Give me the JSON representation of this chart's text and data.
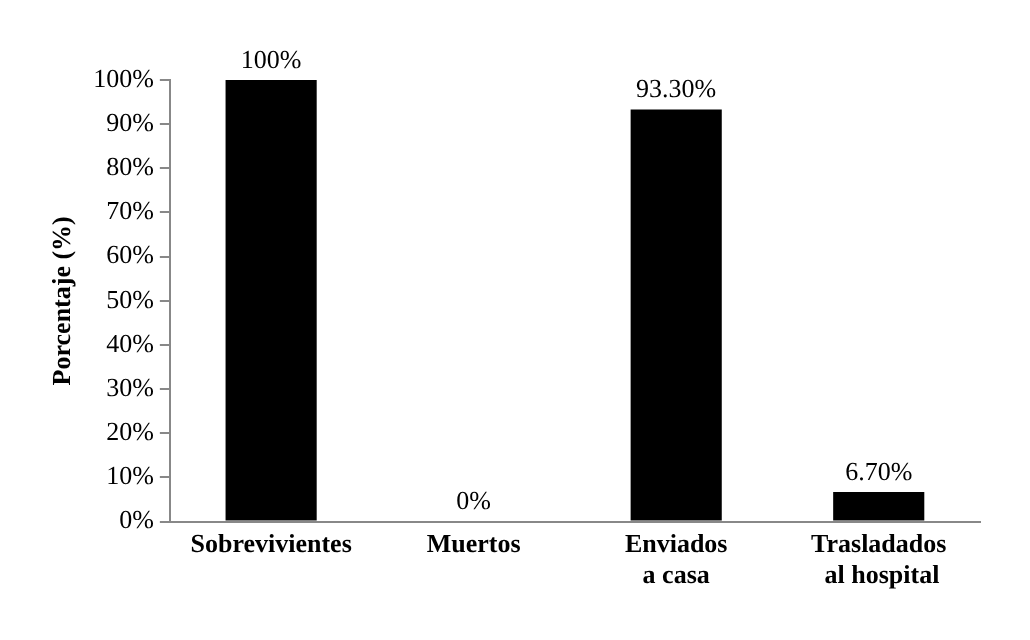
{
  "chart_data": {
    "type": "bar",
    "ylabel": "Porcentaje (%)",
    "categories": [
      "Sobrevivientes",
      "Muertos",
      "Enviados\na casa",
      "Trasladados\n al hospital"
    ],
    "values": [
      100,
      0,
      93.3,
      6.7
    ],
    "color": "#000000",
    "value_labels": [
      "100%",
      "0%",
      "93.30%",
      "6.70%"
    ],
    "ylim": [
      0,
      100
    ],
    "yticks": [
      {
        "value": 0,
        "label": "0%"
      },
      {
        "value": 10,
        "label": "10%"
      },
      {
        "value": 20,
        "label": "20%"
      },
      {
        "value": 30,
        "label": "30%"
      },
      {
        "value": 40,
        "label": "40%"
      },
      {
        "value": 50,
        "label": "50%"
      },
      {
        "value": 60,
        "label": "60%"
      },
      {
        "value": 70,
        "label": "70%"
      },
      {
        "value": 80,
        "label": "80%"
      },
      {
        "value": 90,
        "label": "90%"
      },
      {
        "value": 100,
        "label": "100%"
      }
    ],
    "grid": false,
    "legend": false
  }
}
